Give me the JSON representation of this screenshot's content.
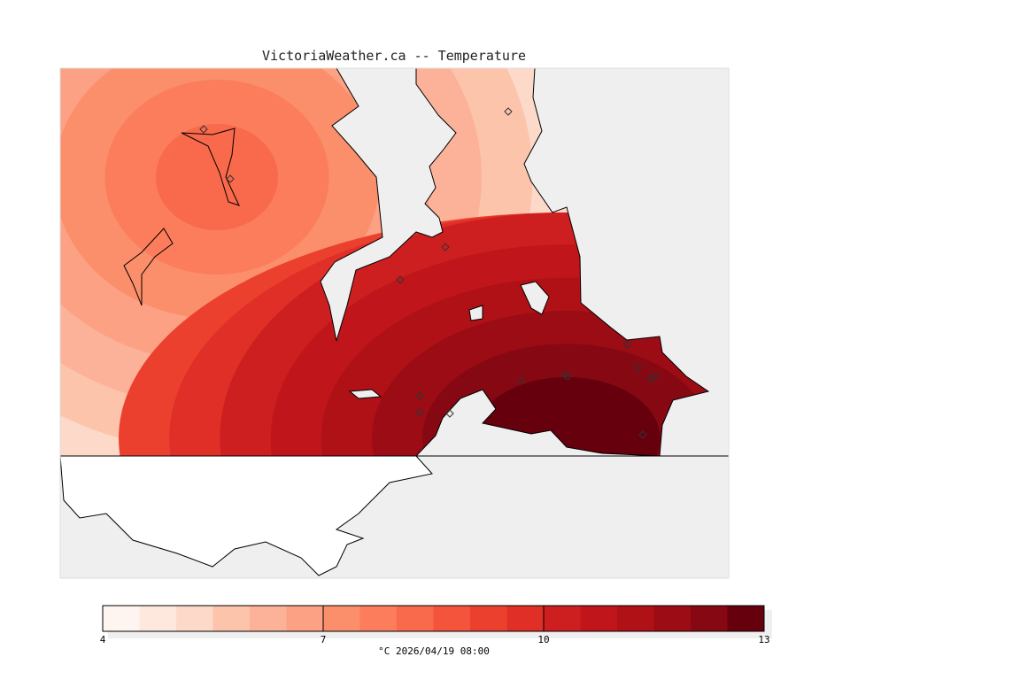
{
  "title": "VictoriaWeather.ca -- Temperature",
  "colorbar": {
    "min": 4,
    "max": 13,
    "step": 0.5,
    "tick_labels": [
      "4",
      "7",
      "10",
      "13"
    ],
    "units_label": "°C  2026/04/19 08:00",
    "colors": [
      "#fff5f0",
      "#fee8dd",
      "#fdd9ca",
      "#fcc4ab",
      "#fcb298",
      "#fca183",
      "#fb8e6b",
      "#fb7d5b",
      "#f9694b",
      "#f3543b",
      "#ec402f",
      "#df2f26",
      "#ce1f20",
      "#c0161b",
      "#af1116",
      "#9b0c14",
      "#850812",
      "#67000d"
    ]
  },
  "map": {
    "water_color": "#efefef",
    "land_outside_color": "#ffffff"
  }
}
